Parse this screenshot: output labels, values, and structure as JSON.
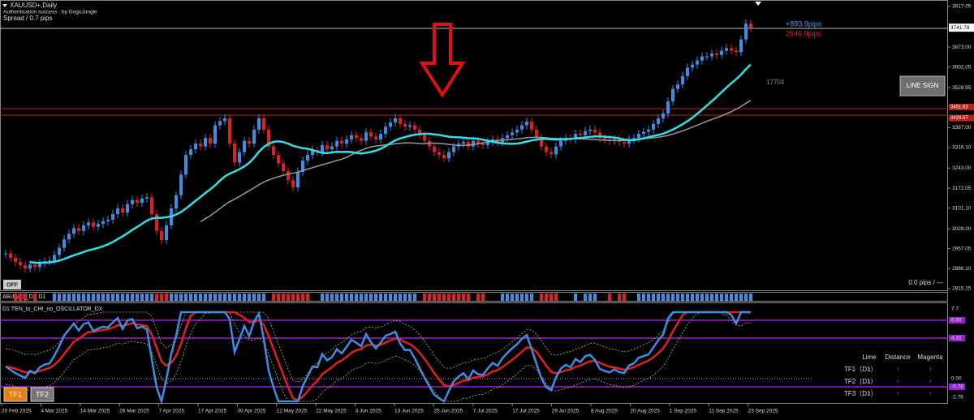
{
  "window": {
    "symbol": "XAUUSD+,Daily",
    "auth": "Authentication success : by GogoJungle",
    "spread": "Spread / 0.7 pips"
  },
  "price_chart": {
    "closes": [
      2940,
      2925,
      2910,
      2898,
      2886,
      2900,
      2892,
      2905,
      2912,
      2915,
      2935,
      2960,
      2990,
      3010,
      3030,
      3020,
      3040,
      3050,
      3035,
      3045,
      3055,
      3060,
      3080,
      3100,
      3085,
      3115,
      3130,
      3120,
      3135,
      3140,
      3080,
      3020,
      2988,
      3040,
      3100,
      3147,
      3220,
      3290,
      3310,
      3330,
      3320,
      3350,
      3330,
      3395,
      3410,
      3420,
      3330,
      3263,
      3300,
      3340,
      3330,
      3380,
      3420,
      3380,
      3320,
      3290,
      3260,
      3233,
      3200,
      3175,
      3230,
      3270,
      3290,
      3307,
      3300,
      3325,
      3310,
      3320,
      3340,
      3330,
      3345,
      3360,
      3350,
      3340,
      3370,
      3355,
      3345,
      3365,
      3390,
      3405,
      3420,
      3400,
      3390,
      3395,
      3380,
      3360,
      3340,
      3320,
      3300,
      3290,
      3278,
      3300,
      3320,
      3330,
      3336,
      3320,
      3340,
      3330,
      3325,
      3336,
      3345,
      3335,
      3350,
      3360,
      3370,
      3380,
      3395,
      3408,
      3380,
      3350,
      3320,
      3300,
      3292,
      3320,
      3340,
      3350,
      3345,
      3365,
      3360,
      3375,
      3380,
      3370,
      3350,
      3345,
      3340,
      3345,
      3336,
      3330,
      3345,
      3350,
      3365,
      3372,
      3380,
      3400,
      3420,
      3437,
      3480,
      3524,
      3540,
      3570,
      3600,
      3611,
      3625,
      3640,
      3640,
      3650,
      3645,
      3660,
      3669,
      3660,
      3655,
      3700,
      3756,
      3742
    ],
    "price_axis": [
      "3817.05",
      "3673.00",
      "3602.05",
      "3528.95",
      "3387.00",
      "3316.10",
      "3243.00",
      "3172.05",
      "3101.10",
      "3028.00",
      "2957.05",
      "2886.10",
      "2815.15"
    ],
    "current_price": "3741.78",
    "levels": [
      "3451.63",
      "3429.57"
    ],
    "profit_pips": "+893.9pips",
    "loss_pips": "2646.9pips",
    "counter": "17704",
    "line_sign_button": "LINE SIGN",
    "off_button": "OFF",
    "pips_status": "0.0 pips / —"
  },
  "signal_strip": {
    "label": "ABUADX_DX D1"
  },
  "oscillator": {
    "label": "D1 TEN_to_CHI_no_OSCILLATOR_DX",
    "axis": [
      "7.7",
      "6.93",
      "4.32",
      "0.00",
      "-0.78",
      "-2.76"
    ],
    "table": {
      "headers": [
        "Lime",
        "Distance",
        "Magenta"
      ],
      "rows": [
        [
          "TF1（D1）",
          "↑",
          "↑",
          "↑"
        ],
        [
          "TF2（D1）",
          "↑",
          "↑",
          "↑"
        ],
        [
          "TF3（D1）",
          "↑",
          "↑",
          "↑"
        ]
      ]
    },
    "buttons": [
      "TF1",
      "TF2"
    ]
  },
  "dates": [
    "20 Feb 2025",
    "4 Mar 2025",
    "14 Mar 2025",
    "26 Mar 2025",
    "7 Apr 2025",
    "17 Apr 2025",
    "30 Apr 2025",
    "12 May 2025",
    "22 May 2025",
    "3 Jun 2025",
    "13 Jun 2025",
    "25 Jun 2025",
    "7 Jul 2025",
    "17 Jul 2025",
    "29 Jul 2025",
    "8 Aug 2025",
    "20 Aug 2025",
    "1 Sep 2025",
    "11 Sep 2025",
    "23 Sep 2025"
  ]
}
